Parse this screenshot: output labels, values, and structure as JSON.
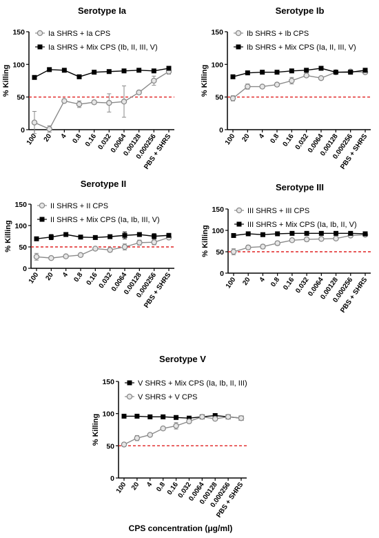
{
  "figure": {
    "xlabel": "CPS concentration (μg/ml)"
  },
  "chart_data": [
    {
      "type": "line",
      "title": "Serotype Ia",
      "ylabel": "% Killing",
      "ylim": [
        0,
        150
      ],
      "yticks": [
        0,
        50,
        100,
        150
      ],
      "categories": [
        "100",
        "20",
        "4",
        "0.8",
        "0.16",
        "0.032",
        "0.0064",
        "0.00128",
        "0.000256",
        "PBS + SHRS"
      ],
      "reference_line": {
        "y": 50,
        "style": "dashed",
        "color": "#e02020"
      },
      "legend_position": "top-left",
      "series": [
        {
          "name": "Ia SHRS + Ia CPS",
          "marker": "open-circle",
          "color": "#8a8a8a",
          "values": [
            11,
            1,
            44,
            39,
            42,
            41,
            43,
            57,
            75,
            89
          ],
          "errors": [
            17,
            5,
            2,
            5,
            3,
            14,
            24,
            3,
            7,
            4
          ]
        },
        {
          "name": "Ia SHRS + Mix CPS (Ib, II, III, V)",
          "marker": "filled-square",
          "color": "#000000",
          "values": [
            80,
            92,
            91,
            81,
            88,
            89,
            90,
            91,
            90,
            94
          ],
          "errors": [
            0,
            0,
            0,
            0,
            0,
            0,
            0,
            0,
            0,
            0
          ]
        }
      ]
    },
    {
      "type": "line",
      "title": "Serotype Ib",
      "ylabel": "% Killing",
      "ylim": [
        0,
        150
      ],
      "yticks": [
        0,
        50,
        100,
        150
      ],
      "categories": [
        "100",
        "20",
        "4",
        "0.8",
        "0.16",
        "0.032",
        "0.0064",
        "0.00128",
        "0.000256",
        "PBS + SHRS"
      ],
      "reference_line": {
        "y": 50,
        "style": "dashed",
        "color": "#e02020"
      },
      "legend_position": "top-left",
      "series": [
        {
          "name": "Ib SHRS + Ib CPS",
          "marker": "open-circle",
          "color": "#8a8a8a",
          "values": [
            48,
            66,
            66,
            69,
            75,
            83,
            79,
            88,
            89,
            88
          ],
          "errors": [
            4,
            4,
            2,
            3,
            5,
            2,
            2,
            2,
            2,
            3
          ]
        },
        {
          "name": "Ib SHRS + Mix CPS (Ia, II, III, V)",
          "marker": "filled-square",
          "color": "#000000",
          "values": [
            81,
            87,
            88,
            88,
            90,
            91,
            94,
            88,
            88,
            91
          ],
          "errors": [
            0,
            0,
            0,
            0,
            0,
            0,
            0,
            0,
            0,
            0
          ]
        }
      ]
    },
    {
      "type": "line",
      "title": "Serotype II",
      "ylabel": "% Killing",
      "ylim": [
        0,
        150
      ],
      "yticks": [
        0,
        50,
        100,
        150
      ],
      "categories": [
        "100",
        "20",
        "4",
        "0.8",
        "0.16",
        "0.032",
        "0.0064",
        "0.00128",
        "0.000256",
        "PBS + SHRS"
      ],
      "reference_line": {
        "y": 50,
        "style": "dashed",
        "color": "#e02020"
      },
      "legend_position": "top-left",
      "series": [
        {
          "name": "II SHRS + II CPS",
          "marker": "open-circle",
          "color": "#8a8a8a",
          "values": [
            27,
            24,
            28,
            31,
            46,
            43,
            50,
            60,
            61,
            72
          ],
          "errors": [
            8,
            2,
            2,
            2,
            2,
            5,
            7,
            6,
            6,
            4
          ]
        },
        {
          "name": "II SHRS + Mix CPS (Ia, Ib, III, V)",
          "marker": "filled-square",
          "color": "#000000",
          "values": [
            69,
            73,
            79,
            73,
            72,
            74,
            77,
            79,
            75,
            77
          ],
          "errors": [
            0,
            6,
            0,
            0,
            0,
            3,
            8,
            4,
            6,
            3
          ]
        }
      ]
    },
    {
      "type": "line",
      "title": "Serotype III",
      "ylabel": "% Killing",
      "ylim": [
        0,
        150
      ],
      "yticks": [
        0,
        50,
        100,
        150
      ],
      "categories": [
        "100",
        "20",
        "4",
        "0.8",
        "0.16",
        "0.032",
        "0.0064",
        "0.00128",
        "0.000256",
        "PBS + SHRS"
      ],
      "reference_line": {
        "y": 50,
        "style": "dashed",
        "color": "#e02020"
      },
      "legend_position": "top-left",
      "series": [
        {
          "name": "III SHRS + III CPS",
          "marker": "open-circle",
          "color": "#8a8a8a",
          "values": [
            50,
            60,
            62,
            70,
            77,
            79,
            80,
            81,
            88,
            90
          ],
          "errors": [
            7,
            5,
            5,
            5,
            2,
            5,
            3,
            2,
            2,
            2
          ]
        },
        {
          "name": "III SHRS + Mix CPS (Ia, Ib, II, V)",
          "marker": "filled-square",
          "color": "#000000",
          "values": [
            88,
            92,
            90,
            92,
            93,
            93,
            93,
            93,
            93,
            92
          ],
          "errors": [
            0,
            0,
            0,
            0,
            0,
            0,
            0,
            0,
            0,
            0
          ]
        }
      ]
    },
    {
      "type": "line",
      "title": "Serotype V",
      "ylabel": "% Killing",
      "ylim": [
        0,
        150
      ],
      "yticks": [
        0,
        50,
        100,
        150
      ],
      "categories": [
        "100",
        "20",
        "4",
        "0.8",
        "0.16",
        "0.032",
        "0.0064",
        "0.00128",
        "0.000256",
        "PBS + SHRS"
      ],
      "reference_line": {
        "y": 50,
        "style": "dashed",
        "color": "#e02020"
      },
      "legend_position": "top-left",
      "series": [
        {
          "name": "V SHRS + Mix CPS (Ia, Ib, II, III)",
          "marker": "filled-square",
          "color": "#000000",
          "values": [
            96,
            96,
            95,
            95,
            94,
            93,
            95,
            97,
            95,
            93
          ],
          "errors": [
            0,
            0,
            0,
            0,
            0,
            0,
            0,
            0,
            0,
            0
          ]
        },
        {
          "name": "V SHRS + V CPS",
          "marker": "open-circle",
          "color": "#8a8a8a",
          "values": [
            52,
            62,
            67,
            77,
            81,
            88,
            95,
            92,
            95,
            93
          ],
          "errors": [
            3,
            4,
            2,
            2,
            5,
            3,
            2,
            3,
            2,
            3
          ]
        }
      ]
    }
  ]
}
